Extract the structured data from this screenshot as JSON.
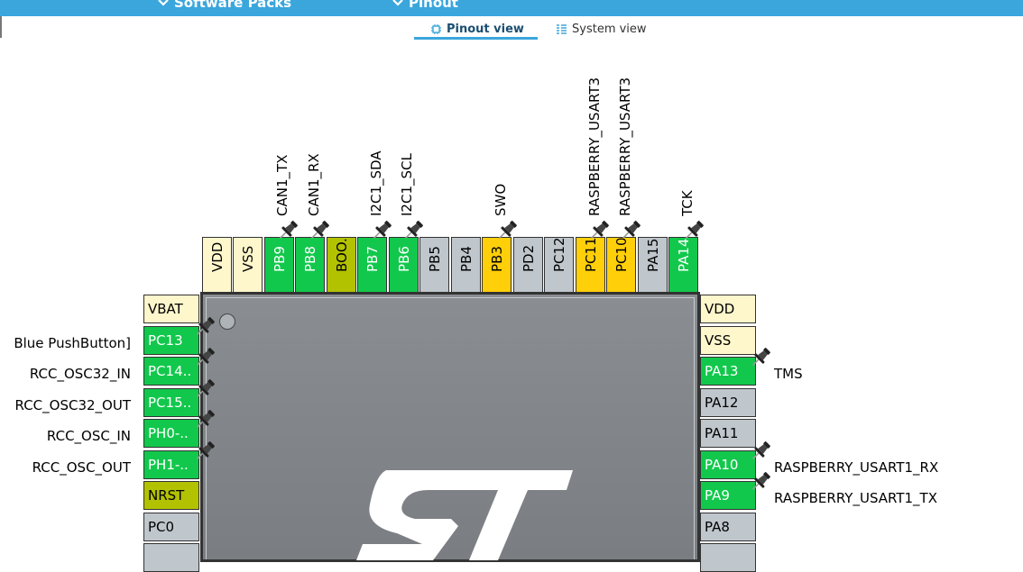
{
  "header": {
    "menus": [
      {
        "label": "Software Packs"
      },
      {
        "label": "Pinout"
      }
    ]
  },
  "tabs": [
    {
      "label": "Pinout view",
      "active": true
    },
    {
      "label": "System view",
      "active": false
    }
  ],
  "top_pins": [
    {
      "name": "VDD",
      "color": "cream"
    },
    {
      "name": "VSS",
      "color": "cream"
    },
    {
      "name": "PB9",
      "color": "green",
      "signal": "CAN1_TX",
      "pinned": true
    },
    {
      "name": "PB8",
      "color": "green",
      "signal": "CAN1_RX",
      "pinned": true
    },
    {
      "name": "BOO..",
      "color": "olive"
    },
    {
      "name": "PB7",
      "color": "green",
      "signal": "I2C1_SDA",
      "pinned": true
    },
    {
      "name": "PB6",
      "color": "green",
      "signal": "I2C1_SCL",
      "pinned": true
    },
    {
      "name": "PB5",
      "color": "grey"
    },
    {
      "name": "PB4",
      "color": "grey"
    },
    {
      "name": "PB3",
      "color": "yellow",
      "signal": "SWO",
      "pinned": true
    },
    {
      "name": "PD2",
      "color": "grey"
    },
    {
      "name": "PC12",
      "color": "grey"
    },
    {
      "name": "PC11",
      "color": "yellow",
      "signal": "RASPBERRY_USART3",
      "pinned": true
    },
    {
      "name": "PC10",
      "color": "yellow",
      "signal": "RASPBERRY_USART3",
      "pinned": true
    },
    {
      "name": "PA15",
      "color": "grey"
    },
    {
      "name": "PA14",
      "color": "green",
      "signal": "TCK",
      "pinned": true
    }
  ],
  "left_pins": [
    {
      "name": "VBAT",
      "color": "cream"
    },
    {
      "name": "PC13",
      "color": "green",
      "signal": "Blue PushButton]",
      "pinned": true
    },
    {
      "name": "PC14..",
      "color": "green",
      "signal": "RCC_OSC32_IN",
      "pinned": true
    },
    {
      "name": "PC15..",
      "color": "green",
      "signal": "RCC_OSC32_OUT",
      "pinned": true
    },
    {
      "name": "PH0-..",
      "color": "green",
      "signal": "RCC_OSC_IN",
      "pinned": true
    },
    {
      "name": "PH1-..",
      "color": "green",
      "signal": "RCC_OSC_OUT",
      "pinned": true
    },
    {
      "name": "NRST",
      "color": "olive"
    },
    {
      "name": "PC0",
      "color": "grey"
    }
  ],
  "right_pins": [
    {
      "name": "VDD",
      "color": "cream"
    },
    {
      "name": "VSS",
      "color": "cream"
    },
    {
      "name": "PA13",
      "color": "green",
      "signal": "TMS",
      "pinned": true
    },
    {
      "name": "PA12",
      "color": "grey"
    },
    {
      "name": "PA11",
      "color": "grey"
    },
    {
      "name": "PA10",
      "color": "green",
      "signal": "RASPBERRY_USART1_RX",
      "pinned": true
    },
    {
      "name": "PA9",
      "color": "green",
      "signal": "RASPBERRY_USART1_TX",
      "pinned": true
    },
    {
      "name": "PA8",
      "color": "grey"
    }
  ],
  "colors": {
    "header": "#3aa6dc",
    "green": "#12c84c",
    "yellow": "#ffcf0a",
    "olive": "#b3c200",
    "grey": "#bfc6cc",
    "cream": "#fff7cc"
  }
}
